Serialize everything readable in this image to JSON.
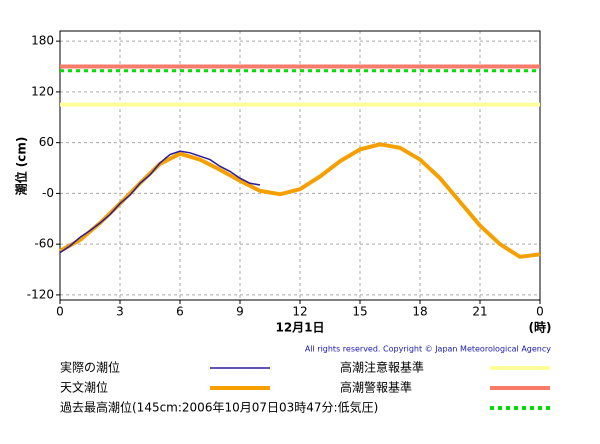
{
  "chart_data": {
    "type": "line",
    "y_label": "潮位 (cm)",
    "x_label": "12月1日",
    "x_unit": "(時)",
    "copyright": "All rights reserved. Copyright © Japan Meteorological Agency",
    "xlim": [
      0,
      24
    ],
    "xticks": [
      0,
      3,
      6,
      9,
      12,
      15,
      18,
      21,
      {
        "value": 24,
        "label": "0"
      }
    ],
    "ylim": [
      -126,
      192
    ],
    "yticks": [
      180,
      120,
      60,
      {
        "value": 0,
        "label": "-0"
      },
      -60,
      -120
    ],
    "grid": true,
    "series": [
      {
        "name": "実際の潮位",
        "color": "#2a1aa0",
        "x": [
          0,
          0.5,
          1,
          1.5,
          2,
          2.5,
          3,
          3.5,
          4,
          4.5,
          5,
          5.5,
          6,
          6.5,
          7,
          7.5,
          8,
          8.5,
          9,
          9.5,
          10
        ],
        "values": [
          -70,
          -62,
          -52,
          -44,
          -35,
          -25,
          -12,
          -2,
          12,
          22,
          36,
          46,
          50,
          48,
          44,
          40,
          32,
          26,
          18,
          12,
          10
        ]
      },
      {
        "name": "天文潮位",
        "color": "#f5a000",
        "x": [
          0,
          1,
          2,
          3,
          4,
          5,
          6,
          7,
          8,
          9,
          10,
          11,
          12,
          13,
          14,
          15,
          16,
          17,
          18,
          19,
          20,
          21,
          22,
          23,
          24
        ],
        "values": [
          -68,
          -55,
          -35,
          -12,
          12,
          35,
          47,
          40,
          28,
          15,
          3,
          -1,
          5,
          20,
          38,
          52,
          58,
          54,
          40,
          18,
          -10,
          -38,
          -60,
          -75,
          -72
        ]
      }
    ],
    "reference_lines": [
      {
        "name": "高潮注意報基準",
        "color": "#ffff99",
        "value": 105,
        "dashed": false
      },
      {
        "name": "高潮警報基準",
        "color": "#f87a68",
        "value": 150,
        "dashed": false
      },
      {
        "name": "過去最高潮位(145cm:2006年10月07日03時47分:低気圧)",
        "color": "#00dd00",
        "value": 145,
        "dashed": true
      }
    ]
  }
}
